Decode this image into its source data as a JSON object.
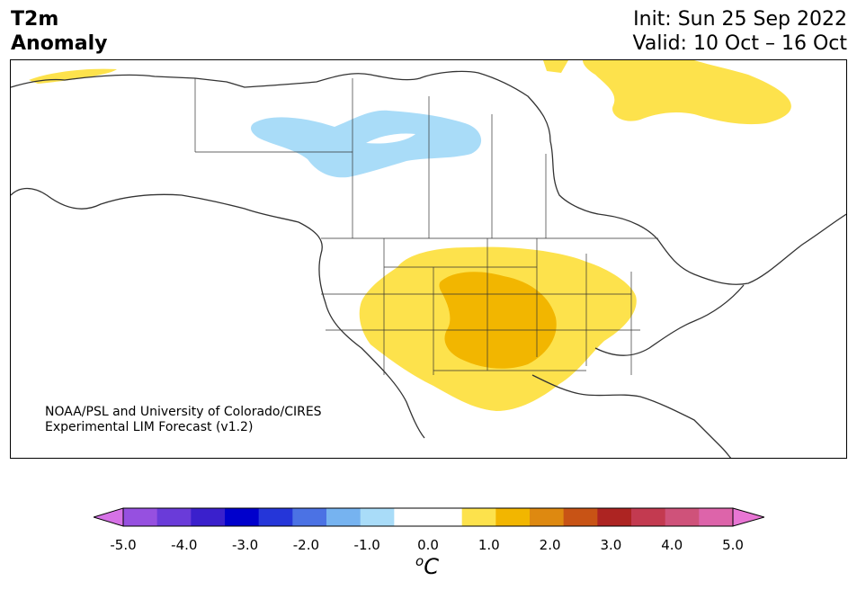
{
  "header": {
    "title_line1": "T2m",
    "title_line2": "Anomaly",
    "init": "Init: Sun 25 Sep 2022",
    "valid": "Valid: 10 Oct – 16 Oct"
  },
  "map": {
    "credit_line1": "NOAA/PSL and University of Colorado/CIRES",
    "credit_line2": "Experimental LIM Forecast (v1.2)",
    "anomaly_regions": [
      {
        "name": "western-canada-cold",
        "level": -1.0,
        "color": "#a9dcf8"
      },
      {
        "name": "arctic-islands-warm",
        "level": 1.0,
        "color": "#fde24c"
      },
      {
        "name": "alaska-north-slope-warm",
        "level": 1.0,
        "color": "#fde24c"
      },
      {
        "name": "central-us-warm",
        "level": 1.0,
        "color": "#fde24c"
      },
      {
        "name": "plains-warm-core",
        "level": 1.5,
        "color": "#f2b600"
      }
    ]
  },
  "colorbar": {
    "colors": [
      "#d672e6",
      "#9650e0",
      "#6a3bd9",
      "#3a20cc",
      "#0000cc",
      "#2536d9",
      "#4b72e4",
      "#76b3f0",
      "#a9dcf8",
      "#ffffff",
      "#ffffff",
      "#fde24c",
      "#f2b600",
      "#de8910",
      "#c85315",
      "#ad2422",
      "#c33a50",
      "#cf527a",
      "#dd64aa",
      "#e876d4"
    ],
    "ticks": [
      "-5.0",
      "-4.0",
      "-3.0",
      "-2.0",
      "-1.0",
      "0.0",
      "1.0",
      "2.0",
      "3.0",
      "4.0",
      "5.0"
    ],
    "unit_base": "C",
    "unit_sup": "o"
  }
}
